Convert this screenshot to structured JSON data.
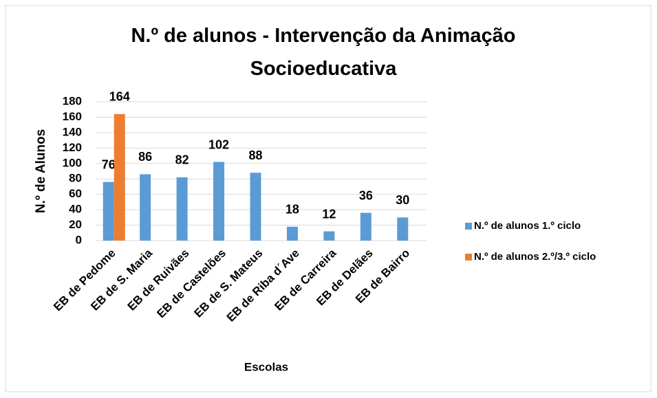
{
  "chart_data": {
    "type": "bar",
    "title": "N.º de alunos - Intervenção da Animação Socioeducativa",
    "x_label": "Escolas",
    "y_label": "N.º de Alunos",
    "categories": [
      "EB de Pedome",
      "EB de S. Maria",
      "EB de Ruivães",
      "EB de Castelões",
      "EB de S. Mateus",
      "EB de Riba d´Ave",
      "EB de Carreira",
      "EB de Delães",
      "EB de Bairro"
    ],
    "series": [
      {
        "name": "N.º de alunos 1.º ciclo",
        "color": "#5b9bd5",
        "values": [
          76,
          86,
          82,
          102,
          88,
          18,
          12,
          36,
          30
        ]
      },
      {
        "name": "N.º de alunos 2.º/3.º ciclo",
        "color": "#ed7d31",
        "values": [
          164,
          null,
          null,
          null,
          null,
          null,
          null,
          null,
          null
        ]
      }
    ],
    "ylim": [
      0,
      180
    ],
    "yticks": [
      0,
      20,
      40,
      60,
      80,
      100,
      120,
      140,
      160,
      180
    ],
    "grid": true,
    "legend": "right"
  }
}
